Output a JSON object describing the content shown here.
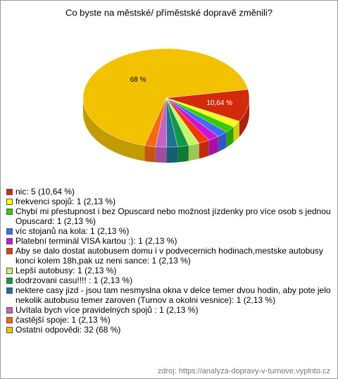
{
  "chart_data": {
    "type": "pie3d",
    "title": "Co byste na městské/ příměstské dopravě změnili?",
    "categories": [
      "nic: 5 (10,64 %)",
      "frekvenci spojů: 1 (2,13 %)",
      "Chybí mi přestupnost i bez Opuscard nebo možnost jízdenky pro více osob s jednou Opuscard: 1 (2,13 %)",
      "víc stojanů na kola: 1 (2,13 %)",
      "Platební terminál VISA kartou :): 1 (2,13 %)",
      "Aby se dalo dostat autobusem domu i v podvecernich hodinach,mestske autobusy konci kolem 18h,pak uz neni sance: 1 (2,13 %)",
      "Lepší autobusy: 1 (2,13 %)",
      "dodrzovani casu!!!! : 1 (2,13 %)",
      "nektere casy jizd - jsou tam nesmyslna okna v delce temer dvou hodin, aby pote jelo nekolik autobusu temer zaroven (Turnov a okolni vesnice): 1 (2,13 %)",
      "Uvítala bych více pravidelných spojů : 1 (2,13 %)",
      "častější spoje: 1 (2,13 %)",
      "Ostatní odpovědi: 32 (68 %)"
    ],
    "values": [
      10.64,
      2.13,
      2.13,
      2.13,
      2.13,
      2.13,
      2.13,
      2.13,
      2.13,
      2.13,
      2.13,
      68
    ],
    "value_labels": [
      "10,64 %",
      null,
      null,
      null,
      null,
      null,
      null,
      null,
      null,
      null,
      null,
      "68 %"
    ],
    "colors": [
      "#d42a0c",
      "#ffff1a",
      "#33cc00",
      "#3d6cf5",
      "#cc14d6",
      "#f2360d",
      "#c6f76a",
      "#119944",
      "#1a7391",
      "#c561c9",
      "#f56a10",
      "#f2c200"
    ],
    "source": "zdroj: https://analyza-dopravy-v-turnove.vyplnto.cz"
  }
}
